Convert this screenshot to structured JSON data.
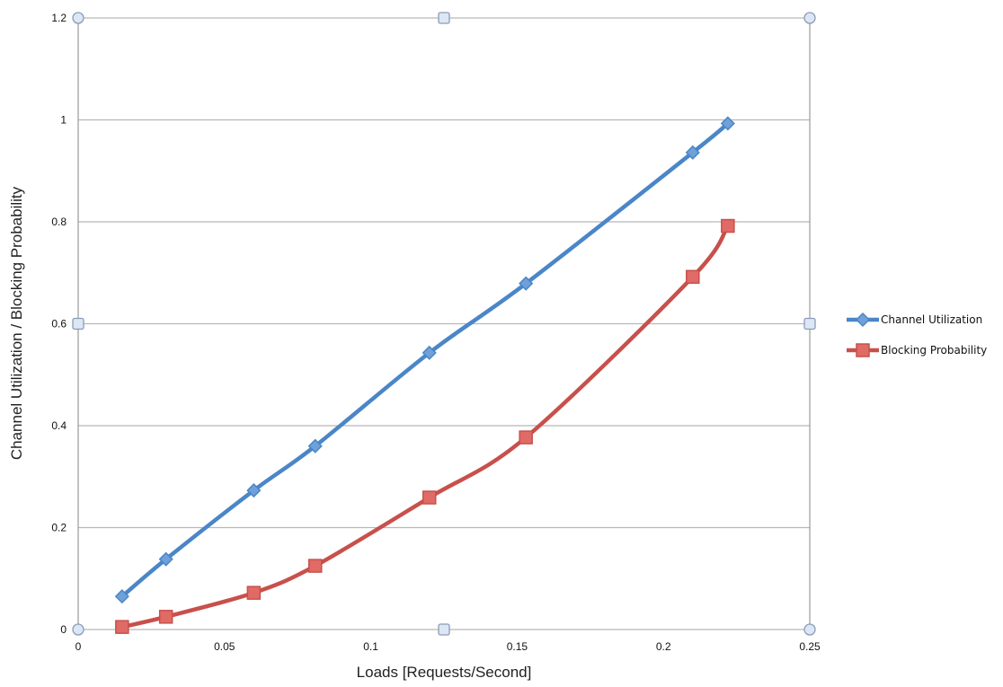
{
  "chart_data": {
    "type": "line",
    "title": "",
    "xlabel": "Loads [Requests/Second]",
    "ylabel": "Channel Utilization / Blocking Probability",
    "xlim": [
      0,
      0.25
    ],
    "ylim": [
      0,
      1.2
    ],
    "x_ticks": [
      0,
      0.05,
      0.1,
      0.15,
      0.2,
      0.25
    ],
    "x_tick_labels": [
      "0",
      "0.05",
      "0.1",
      "0.15",
      "0.2",
      "0.25"
    ],
    "y_ticks": [
      0,
      0.2,
      0.4,
      0.6,
      0.8,
      1,
      1.2
    ],
    "y_tick_labels": [
      "0",
      "0.2",
      "0.4",
      "0.6",
      "0.8",
      "1",
      "1.2"
    ],
    "grid": "horizontal",
    "legend_position": "right",
    "series": [
      {
        "name": "Channel Utilization",
        "color": "#4a86c8",
        "marker": "diamond",
        "x": [
          0.015,
          0.03,
          0.06,
          0.081,
          0.12,
          0.153,
          0.21,
          0.222
        ],
        "y": [
          0.065,
          0.138,
          0.273,
          0.36,
          0.543,
          0.679,
          0.936,
          0.993
        ]
      },
      {
        "name": "Blocking Probability",
        "color": "#c8504b",
        "marker": "square",
        "x": [
          0.015,
          0.03,
          0.06,
          0.081,
          0.12,
          0.153,
          0.21,
          0.222
        ],
        "y": [
          0.005,
          0.025,
          0.072,
          0.125,
          0.259,
          0.377,
          0.692,
          0.792
        ]
      }
    ]
  }
}
